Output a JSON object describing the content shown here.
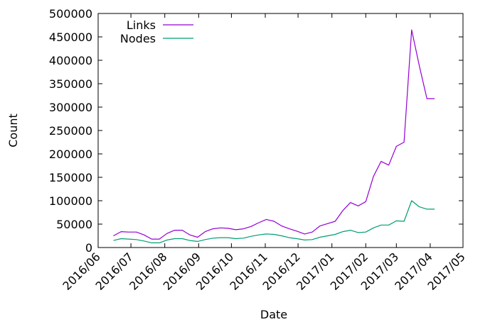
{
  "chart_data": {
    "type": "line",
    "xlabel": "Date",
    "ylabel": "Count",
    "ylim": [
      0,
      500000
    ],
    "yticks": [
      0,
      50000,
      100000,
      150000,
      200000,
      250000,
      300000,
      350000,
      400000,
      450000,
      500000
    ],
    "xlim": [
      "2016-06-01",
      "2017-05-01"
    ],
    "xticks": [
      "2016/06",
      "2016/07",
      "2016/08",
      "2016/09",
      "2016/10",
      "2016/11",
      "2016/12",
      "2017/01",
      "2017/02",
      "2017/03",
      "2017/04",
      "2017/05"
    ],
    "xtick_dates": [
      "2016-06-01",
      "2016-07-01",
      "2016-08-01",
      "2016-09-01",
      "2016-10-01",
      "2016-11-01",
      "2016-12-01",
      "2017-01-01",
      "2017-02-01",
      "2017-03-01",
      "2017-04-01",
      "2017-05-01"
    ],
    "legend_position": "top-left",
    "grid": false,
    "x": [
      "2016-06-15",
      "2016-06-22",
      "2016-06-29",
      "2016-07-06",
      "2016-07-13",
      "2016-07-20",
      "2016-07-27",
      "2016-08-03",
      "2016-08-10",
      "2016-08-17",
      "2016-08-24",
      "2016-08-31",
      "2016-09-07",
      "2016-09-14",
      "2016-09-21",
      "2016-09-28",
      "2016-10-05",
      "2016-10-12",
      "2016-10-19",
      "2016-10-26",
      "2016-11-02",
      "2016-11-09",
      "2016-11-16",
      "2016-11-23",
      "2016-11-30",
      "2016-12-07",
      "2016-12-14",
      "2016-12-21",
      "2016-12-28",
      "2017-01-04",
      "2017-01-11",
      "2017-01-18",
      "2017-01-25",
      "2017-02-01",
      "2017-02-08",
      "2017-02-15",
      "2017-02-22",
      "2017-03-01",
      "2017-03-08",
      "2017-03-15",
      "2017-03-22",
      "2017-03-29",
      "2017-04-05"
    ],
    "series": [
      {
        "name": "Links",
        "color": "#9400d3",
        "values": [
          25000,
          34000,
          33000,
          33000,
          27000,
          18000,
          18000,
          30000,
          37000,
          37000,
          27000,
          22000,
          34000,
          40000,
          42000,
          41000,
          38000,
          40000,
          45000,
          53000,
          60000,
          56000,
          46000,
          40000,
          35000,
          29000,
          33000,
          46000,
          51000,
          56000,
          79000,
          96000,
          89000,
          98000,
          152000,
          184000,
          176000,
          216000,
          225000,
          465000,
          388000,
          318000,
          318000
        ]
      },
      {
        "name": "Nodes",
        "color": "#009e73",
        "values": [
          15000,
          19000,
          18000,
          17000,
          14000,
          10000,
          10000,
          16000,
          19000,
          19000,
          15000,
          13000,
          17000,
          20000,
          21000,
          21000,
          19000,
          20000,
          24000,
          27000,
          29000,
          28000,
          25000,
          21000,
          19000,
          16000,
          17000,
          22000,
          25000,
          28000,
          34000,
          37000,
          32000,
          33000,
          42000,
          48000,
          48000,
          57000,
          56000,
          100000,
          87000,
          82000,
          82000
        ]
      }
    ]
  }
}
